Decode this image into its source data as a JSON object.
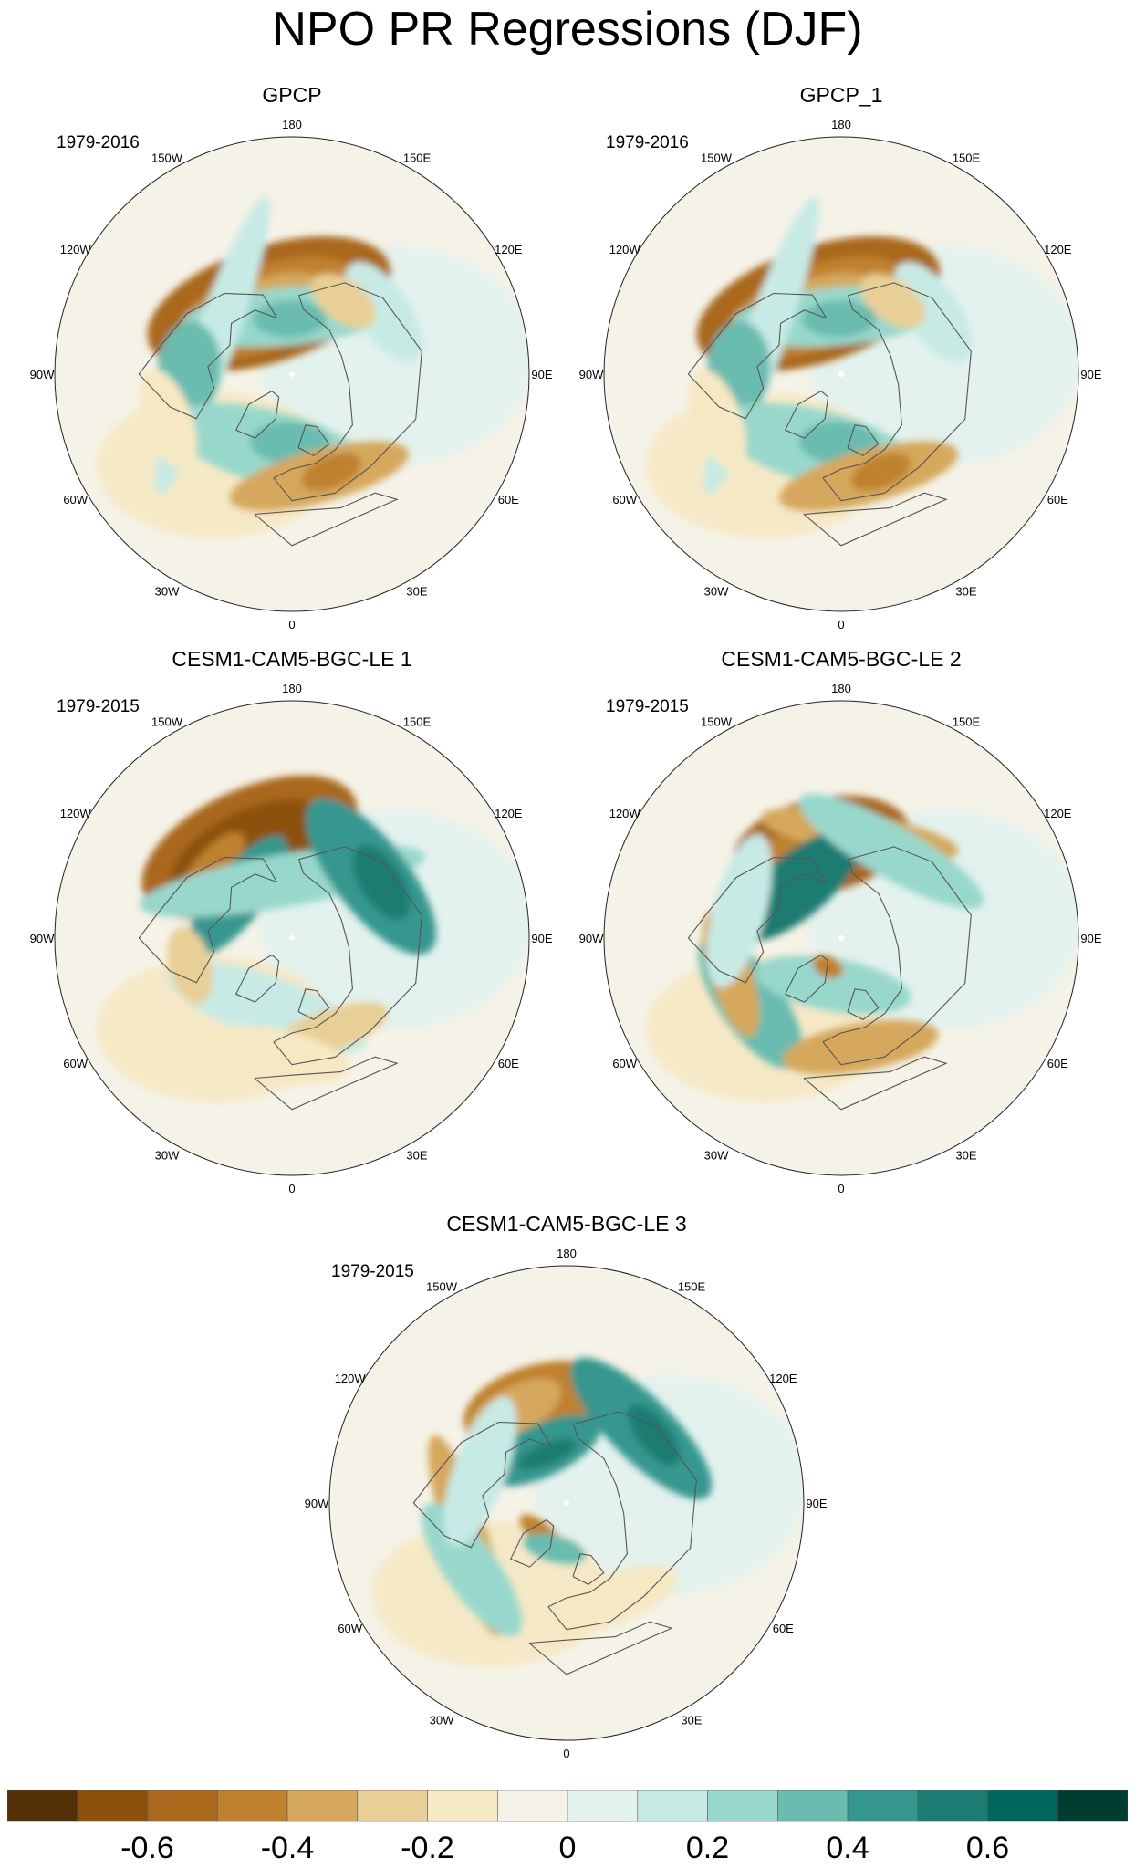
{
  "figure": {
    "title": "NPO PR Regressions (DJF)"
  },
  "panels": [
    {
      "title": "GPCP",
      "years": "1979-2016",
      "features": [
        {
          "type": "neg",
          "level": 5,
          "lon": -162,
          "colat": 28,
          "a": 48,
          "b": 22
        },
        {
          "type": "neg",
          "level": 4,
          "lon": -160,
          "colat": 27,
          "a": 36,
          "b": 16
        },
        {
          "type": "neg",
          "level": 3,
          "lon": -158,
          "colat": 27,
          "a": 24,
          "b": 11
        },
        {
          "type": "pos",
          "level": 3,
          "lon": -175,
          "colat": 22,
          "a": 40,
          "b": 11
        },
        {
          "type": "pos",
          "level": 4,
          "lon": -178,
          "colat": 21,
          "a": 14,
          "b": 7
        },
        {
          "type": "pos",
          "level": 2,
          "lon": -110,
          "colat": 32,
          "a": 60,
          "b": 8
        },
        {
          "type": "pos",
          "level": 4,
          "lon": -93,
          "colat": 39,
          "a": 18,
          "b": 12
        },
        {
          "type": "pos",
          "level": 3,
          "lon": -15,
          "colat": 29,
          "a": 40,
          "b": 14
        },
        {
          "type": "pos",
          "level": 4,
          "lon": -2,
          "colat": 26,
          "a": 15,
          "b": 8
        },
        {
          "type": "neg",
          "level": 3,
          "lon": 15,
          "colat": 40,
          "a": 35,
          "b": 10
        },
        {
          "type": "neg",
          "level": 4,
          "lon": 22,
          "colat": 40,
          "a": 12,
          "b": 6
        },
        {
          "type": "pos",
          "level": 2,
          "lon": 124,
          "colat": 42,
          "a": 22,
          "b": 10
        },
        {
          "type": "neg",
          "level": 2,
          "lon": 145,
          "colat": 34,
          "a": 14,
          "b": 8
        },
        {
          "type": "neg",
          "level": 1,
          "lon": -70,
          "colat": 50,
          "a": 20,
          "b": 9
        }
      ]
    },
    {
      "title": "GPCP_1",
      "years": "1979-2016",
      "features": [
        {
          "type": "neg",
          "level": 5,
          "lon": -162,
          "colat": 28,
          "a": 48,
          "b": 22
        },
        {
          "type": "neg",
          "level": 4,
          "lon": -160,
          "colat": 27,
          "a": 36,
          "b": 16
        },
        {
          "type": "neg",
          "level": 3,
          "lon": -158,
          "colat": 27,
          "a": 24,
          "b": 11
        },
        {
          "type": "pos",
          "level": 3,
          "lon": -175,
          "colat": 22,
          "a": 40,
          "b": 11
        },
        {
          "type": "pos",
          "level": 4,
          "lon": -178,
          "colat": 21,
          "a": 14,
          "b": 7
        },
        {
          "type": "pos",
          "level": 2,
          "lon": -110,
          "colat": 32,
          "a": 60,
          "b": 8
        },
        {
          "type": "pos",
          "level": 4,
          "lon": -93,
          "colat": 39,
          "a": 18,
          "b": 12
        },
        {
          "type": "pos",
          "level": 3,
          "lon": -15,
          "colat": 29,
          "a": 40,
          "b": 14
        },
        {
          "type": "pos",
          "level": 4,
          "lon": -2,
          "colat": 26,
          "a": 15,
          "b": 8
        },
        {
          "type": "neg",
          "level": 3,
          "lon": 15,
          "colat": 40,
          "a": 35,
          "b": 10
        },
        {
          "type": "neg",
          "level": 4,
          "lon": 22,
          "colat": 40,
          "a": 12,
          "b": 6
        },
        {
          "type": "pos",
          "level": 2,
          "lon": 124,
          "colat": 42,
          "a": 22,
          "b": 10
        },
        {
          "type": "neg",
          "level": 2,
          "lon": 145,
          "colat": 34,
          "a": 14,
          "b": 8
        },
        {
          "type": "neg",
          "level": 1,
          "lon": -70,
          "colat": 50,
          "a": 20,
          "b": 9
        }
      ]
    },
    {
      "title": "CESM1-CAM5-BGC-LE 1",
      "years": "1979-2015",
      "features": [
        {
          "type": "neg",
          "level": 5,
          "lon": -155,
          "colat": 38,
          "a": 44,
          "b": 22
        },
        {
          "type": "neg",
          "level": 6,
          "lon": -153,
          "colat": 37,
          "a": 32,
          "b": 15
        },
        {
          "type": "neg",
          "level": 4,
          "lon": -130,
          "colat": 40,
          "a": 18,
          "b": 7
        },
        {
          "type": "pos",
          "level": 5,
          "lon": -128,
          "colat": 26,
          "a": 28,
          "b": 10
        },
        {
          "type": "pos",
          "level": 3,
          "lon": -170,
          "colat": 22,
          "a": 55,
          "b": 10
        },
        {
          "type": "pos",
          "level": 5,
          "lon": 128,
          "colat": 38,
          "a": 36,
          "b": 14
        },
        {
          "type": "pos",
          "level": 6,
          "lon": 122,
          "colat": 40,
          "a": 16,
          "b": 8
        },
        {
          "type": "pos",
          "level": 2,
          "lon": -20,
          "colat": 28,
          "a": 40,
          "b": 12
        },
        {
          "type": "neg",
          "level": 2,
          "lon": -75,
          "colat": 40,
          "a": 15,
          "b": 8
        },
        {
          "type": "neg",
          "level": 2,
          "lon": 20,
          "colat": 38,
          "a": 25,
          "b": 8
        },
        {
          "type": "neg",
          "level": 1,
          "lon": -10,
          "colat": 45,
          "a": 30,
          "b": 10
        }
      ]
    },
    {
      "title": "CESM1-CAM5-BGC-LE 2",
      "years": "1979-2015",
      "features": [
        {
          "type": "neg",
          "level": 5,
          "lon": -168,
          "colat": 36,
          "a": 34,
          "b": 18
        },
        {
          "type": "neg",
          "level": 4,
          "lon": -150,
          "colat": 36,
          "a": 22,
          "b": 10
        },
        {
          "type": "neg",
          "level": 3,
          "lon": 170,
          "colat": 40,
          "a": 38,
          "b": 8
        },
        {
          "type": "pos",
          "level": 6,
          "lon": -140,
          "colat": 26,
          "a": 30,
          "b": 12
        },
        {
          "type": "pos",
          "level": 3,
          "lon": 150,
          "colat": 38,
          "a": 40,
          "b": 10
        },
        {
          "type": "pos",
          "level": 4,
          "lon": -55,
          "colat": 42,
          "a": 30,
          "b": 12
        },
        {
          "type": "pos",
          "level": 3,
          "lon": -10,
          "colat": 18,
          "a": 30,
          "b": 10
        },
        {
          "type": "neg",
          "level": 3,
          "lon": -72,
          "colat": 44,
          "a": 25,
          "b": 8
        },
        {
          "type": "neg",
          "level": 4,
          "lon": -25,
          "colat": 12,
          "a": 6,
          "b": 4
        },
        {
          "type": "neg",
          "level": 3,
          "lon": 10,
          "colat": 42,
          "a": 30,
          "b": 9
        },
        {
          "type": "pos",
          "level": 2,
          "lon": -105,
          "colat": 40,
          "a": 30,
          "b": 10
        }
      ]
    },
    {
      "title": "CESM1-CAM5-BGC-LE 3",
      "years": "1979-2015",
      "features": [
        {
          "type": "neg",
          "level": 4,
          "lon": -165,
          "colat": 38,
          "a": 30,
          "b": 16
        },
        {
          "type": "neg",
          "level": 3,
          "lon": -150,
          "colat": 40,
          "a": 20,
          "b": 9
        },
        {
          "type": "pos",
          "level": 5,
          "lon": -155,
          "colat": 22,
          "a": 24,
          "b": 10
        },
        {
          "type": "pos",
          "level": 6,
          "lon": -158,
          "colat": 20,
          "a": 12,
          "b": 4
        },
        {
          "type": "pos",
          "level": 5,
          "lon": 135,
          "colat": 40,
          "a": 36,
          "b": 12
        },
        {
          "type": "pos",
          "level": 6,
          "lon": 128,
          "colat": 42,
          "a": 14,
          "b": 6
        },
        {
          "type": "neg",
          "level": 3,
          "lon": -72,
          "colat": 40,
          "a": 40,
          "b": 8
        },
        {
          "type": "pos",
          "level": 3,
          "lon": -55,
          "colat": 44,
          "a": 30,
          "b": 10
        },
        {
          "type": "neg",
          "level": 4,
          "lon": -40,
          "colat": 15,
          "a": 10,
          "b": 4
        },
        {
          "type": "pos",
          "level": 4,
          "lon": -15,
          "colat": 18,
          "a": 12,
          "b": 5
        },
        {
          "type": "pos",
          "level": 2,
          "lon": -110,
          "colat": 35,
          "a": 30,
          "b": 10
        },
        {
          "type": "neg",
          "level": 1,
          "lon": 20,
          "colat": 40,
          "a": 30,
          "b": 10
        }
      ]
    }
  ],
  "longitude_labels": [
    "180",
    "150E",
    "120E",
    "90E",
    "60E",
    "30E",
    "0",
    "30W",
    "60W",
    "90W",
    "120W",
    "150W"
  ],
  "colorbar": {
    "colors": [
      "#543005",
      "#8c510a",
      "#a9681b",
      "#bf812d",
      "#d5a85d",
      "#e8cf96",
      "#f6e8c3",
      "#f5f2e7",
      "#e2f2ef",
      "#c7eae5",
      "#98d8cc",
      "#69bcaf",
      "#35978f",
      "#1a7c72",
      "#01665e",
      "#003c30"
    ],
    "labels": [
      "-0.6",
      "-0.4",
      "-0.2",
      "0",
      "0.2",
      "0.4",
      "0.6"
    ]
  }
}
